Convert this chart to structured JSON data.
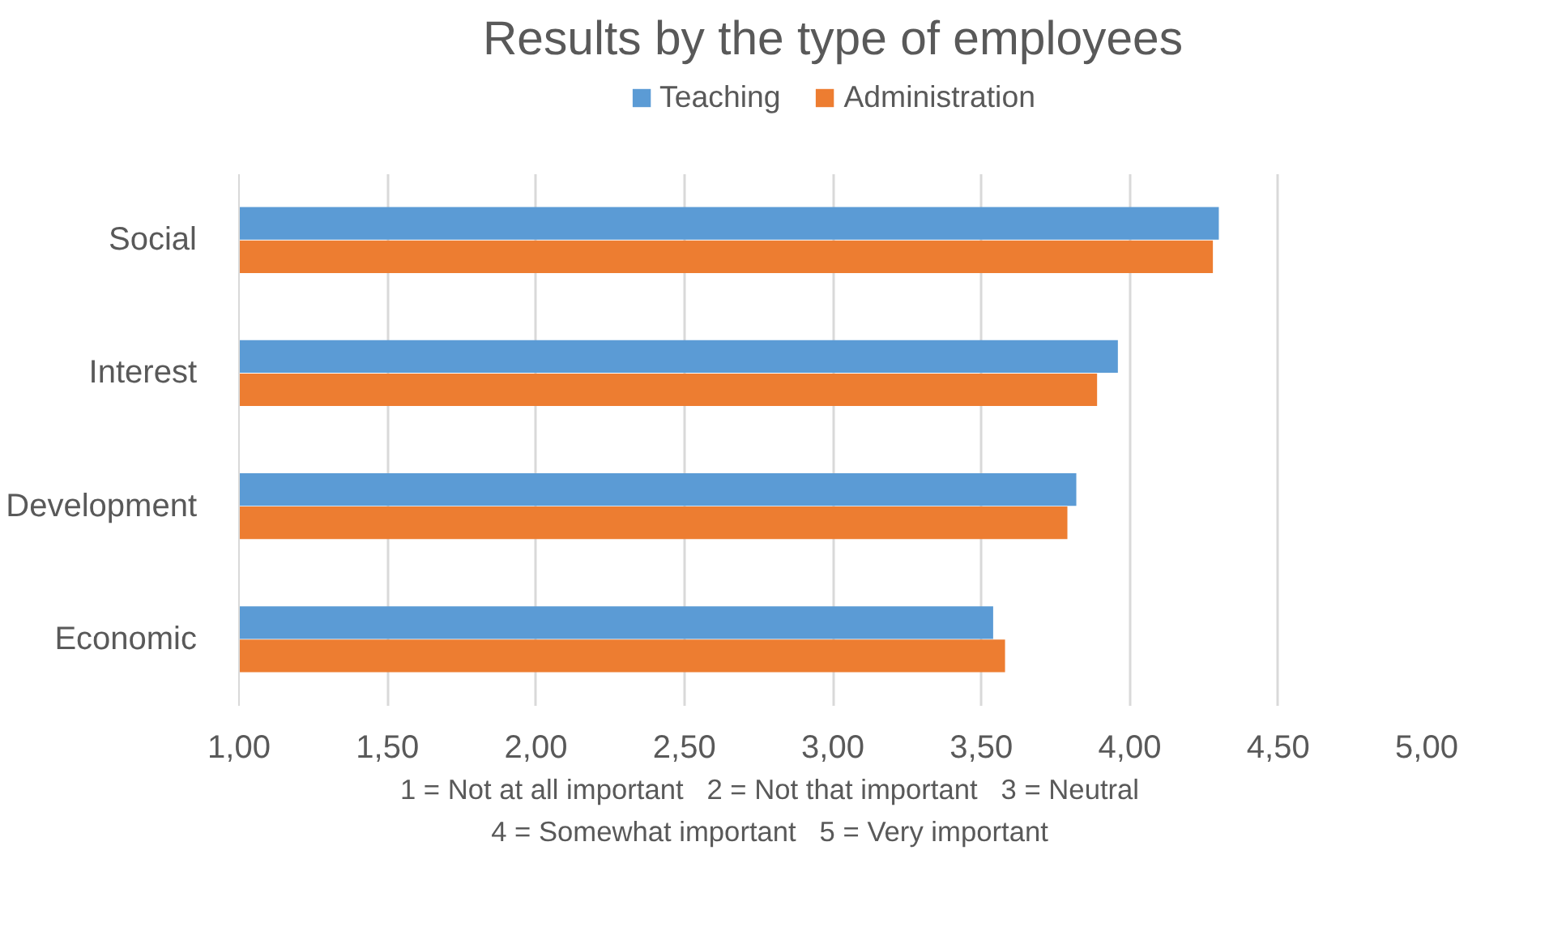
{
  "chart_data": {
    "type": "bar",
    "orientation": "horizontal",
    "title": "Results by the type of employees",
    "categories": [
      "Social",
      "Interest",
      "Development",
      "Economic"
    ],
    "series": [
      {
        "name": "Teaching",
        "color": "#5b9bd5",
        "values": [
          4.3,
          3.96,
          3.82,
          3.54
        ]
      },
      {
        "name": "Administration",
        "color": "#ed7d31",
        "values": [
          4.28,
          3.89,
          3.79,
          3.58
        ]
      }
    ],
    "xlim": [
      1,
      5
    ],
    "xticks": [
      {
        "value": 1,
        "label": "1,00"
      },
      {
        "value": 1.5,
        "label": "1,50"
      },
      {
        "value": 2,
        "label": "2,00"
      },
      {
        "value": 2.5,
        "label": "2,50"
      },
      {
        "value": 3,
        "label": "3,00"
      },
      {
        "value": 3.5,
        "label": "3,50"
      },
      {
        "value": 4,
        "label": "4,00"
      },
      {
        "value": 4.5,
        "label": "4,50"
      },
      {
        "value": 5,
        "label": "5,00"
      }
    ],
    "grid": "x",
    "legend": "top",
    "annotations": [
      "1 = Not at all important   2 = Not that important   3 = Neutral",
      "4 = Somewhat important   5 = Very important"
    ]
  }
}
